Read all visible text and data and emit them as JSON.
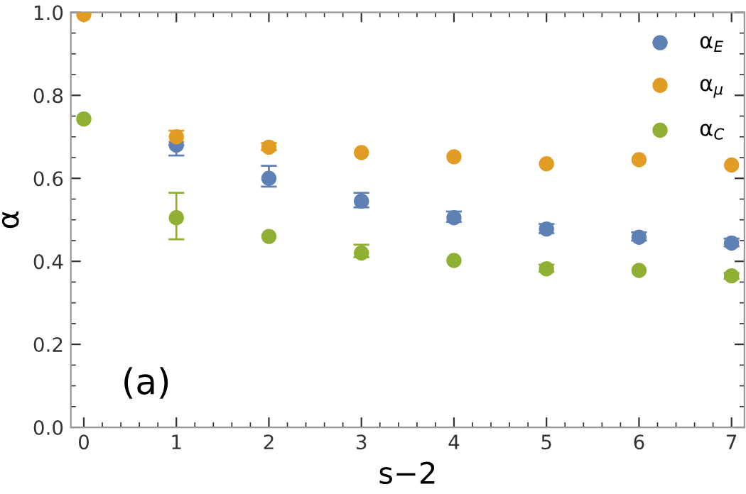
{
  "chart_data": {
    "type": "scatter",
    "xlabel": "s−2",
    "ylabel": "α",
    "x": [
      0,
      1,
      2,
      3,
      4,
      5,
      6,
      7
    ],
    "series": [
      {
        "name": "α$_{E}$",
        "color": "#5e81b5",
        "values": [
          null,
          0.68,
          0.6,
          0.545,
          0.505,
          0.478,
          0.458,
          0.444
        ],
        "errors": [
          null,
          [
            0.655,
            0.68
          ],
          [
            0.58,
            0.63
          ],
          [
            0.53,
            0.565
          ],
          [
            0.495,
            0.52
          ],
          [
            0.468,
            0.49
          ],
          [
            0.45,
            0.47
          ],
          [
            0.436,
            0.455
          ]
        ]
      },
      {
        "name": "α$_{μ}$",
        "color": "#e19c24",
        "values": [
          0.995,
          0.7,
          0.675,
          0.662,
          0.652,
          0.635,
          0.645,
          0.632
        ],
        "errors": [
          null,
          [
            0.688,
            0.715
          ],
          [
            0.668,
            0.685
          ],
          null,
          null,
          null,
          null,
          null
        ]
      },
      {
        "name": "α$_{C}$",
        "color": "#8fb032",
        "values": [
          0.743,
          0.505,
          0.46,
          0.42,
          0.402,
          0.382,
          0.378,
          0.365
        ],
        "errors": [
          null,
          [
            0.453,
            0.565
          ],
          null,
          [
            0.41,
            0.44
          ],
          null,
          [
            0.375,
            0.392
          ],
          null,
          [
            0.358,
            0.372
          ]
        ]
      }
    ],
    "xlim": [
      -0.14,
      7.14
    ],
    "ylim": [
      0,
      1.0
    ],
    "xticks": [
      0,
      1,
      2,
      3,
      4,
      5,
      6,
      7
    ],
    "yticks": [
      {
        "value": 0,
        "label": "0.0"
      },
      0.2,
      0.4,
      0.6,
      0.8,
      {
        "value": 1.0,
        "label": "1.0"
      }
    ],
    "grid": false,
    "legend": "top right",
    "marker": "circle",
    "annotations": [
      "(a)"
    ]
  }
}
